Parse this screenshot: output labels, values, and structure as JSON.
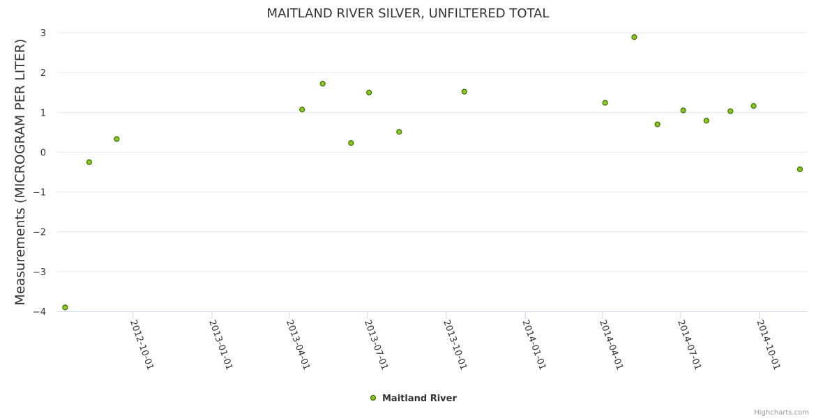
{
  "colors": {
    "marker_fill": "#8bc51d",
    "marker_stroke": "#3a6e06",
    "grid": "#e6e6e6",
    "axis_text": "#333333",
    "title_text": "#333333",
    "credits_text": "#999999"
  },
  "credits": "Highcharts.com",
  "chart_data": {
    "type": "scatter",
    "title": "MAITLAND RIVER SILVER, UNFILTERED TOTAL",
    "xlabel": "",
    "ylabel": "Measurements (MICROGRAM PER LITER)",
    "xlim": [
      "2012-07-12",
      "2014-11-17"
    ],
    "ylim": [
      -4,
      3
    ],
    "yticks": [
      3,
      2,
      1,
      0,
      -1,
      -2,
      -3,
      -4
    ],
    "xticks": [
      "2012-10-01",
      "2013-01-01",
      "2013-04-01",
      "2013-07-01",
      "2013-10-01",
      "2014-01-01",
      "2014-04-01",
      "2014-07-01",
      "2014-10-01"
    ],
    "legend": {
      "position": "bottom-center",
      "entries": [
        "Maitland River"
      ]
    },
    "series": [
      {
        "name": "Maitland River",
        "x": [
          "2012-07-14",
          "2012-08-11",
          "2012-09-12",
          "2013-04-16",
          "2013-05-10",
          "2013-06-12",
          "2013-07-03",
          "2013-08-07",
          "2013-10-22",
          "2014-04-04",
          "2014-05-08",
          "2014-06-04",
          "2014-07-04",
          "2014-07-31",
          "2014-08-28",
          "2014-09-24",
          "2014-11-17"
        ],
        "y": [
          -3.9,
          -0.25,
          0.33,
          1.07,
          1.72,
          0.23,
          1.5,
          0.51,
          1.52,
          1.24,
          2.89,
          0.7,
          1.05,
          0.79,
          1.03,
          1.16,
          -0.43
        ]
      }
    ]
  }
}
